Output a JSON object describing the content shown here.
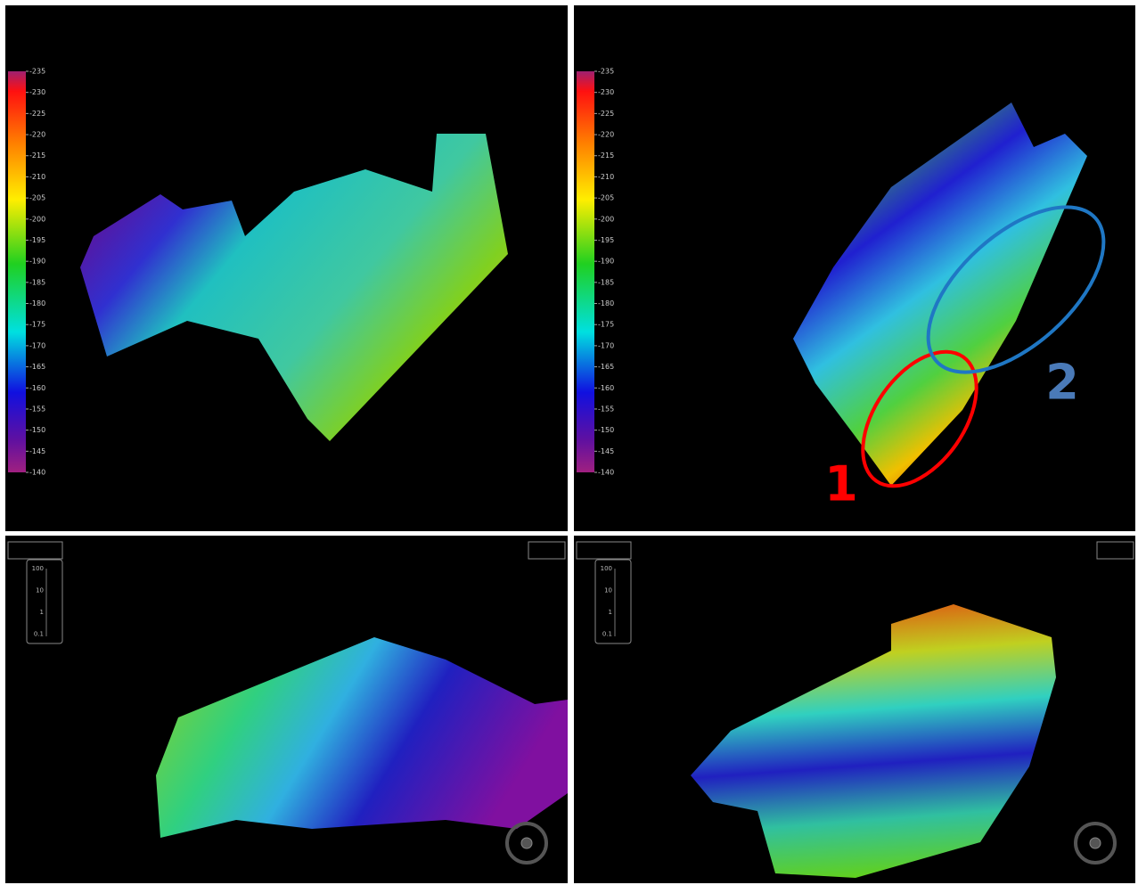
{
  "panels": [
    {
      "colorbar": {
        "lim": [
          -235,
          -140
        ],
        "ticks": [
          -235,
          -230,
          -225,
          -220,
          -215,
          -210,
          -205,
          -200,
          -195,
          -190,
          -185,
          -180,
          -175,
          -170,
          -165,
          -160,
          -155,
          -150,
          -145,
          -140
        ]
      },
      "zoom": {
        "ticks": [
          100,
          10,
          1,
          0.1
        ]
      }
    },
    {
      "colorbar": {
        "lim": [
          -235,
          -140
        ],
        "ticks": [
          -235,
          -230,
          -225,
          -220,
          -215,
          -210,
          -205,
          -200,
          -195,
          -190,
          -185,
          -180,
          -175,
          -170,
          -165,
          -160,
          -155,
          -150,
          -145,
          -140
        ]
      },
      "zoom": {
        "ticks": [
          100,
          10,
          1,
          0.1
        ]
      }
    }
  ],
  "annotations": [
    {
      "label": "1",
      "color": "#ff0000"
    },
    {
      "label": "2",
      "color": "#4a7ab8"
    }
  ]
}
